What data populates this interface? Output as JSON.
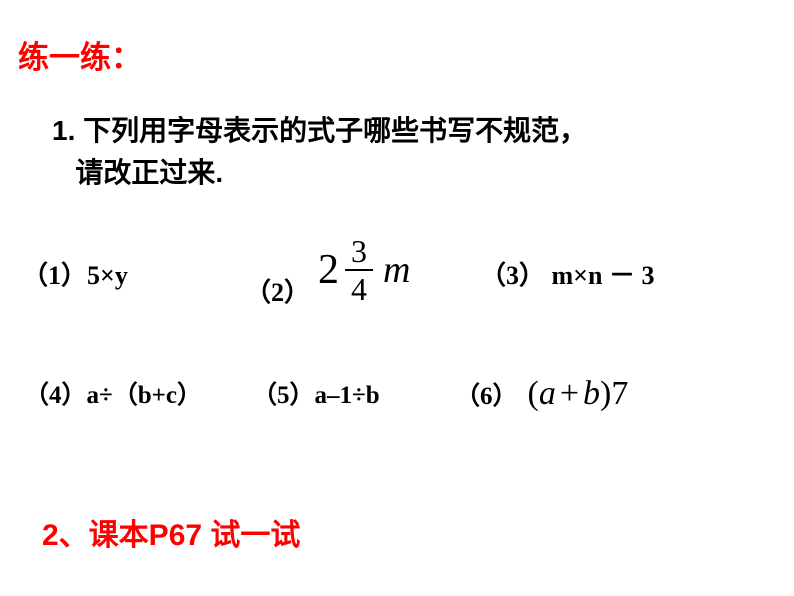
{
  "title": "练一练：",
  "question_line1": "1. 下列用字母表示的式子哪些书写不规范，",
  "question_line2": "请改正过来.",
  "expressions": {
    "e1": {
      "label": "（1）",
      "content": "5×y"
    },
    "e2": {
      "label": "（2）",
      "whole": "2",
      "numerator": "3",
      "denominator": "4",
      "variable": "m"
    },
    "e3": {
      "label": "（3）",
      "content": " m×n － 3"
    },
    "e4": {
      "label": "（4）",
      "content": "a÷（b+c）"
    },
    "e5": {
      "label": "（5）",
      "content": "a–1÷b"
    },
    "e6": {
      "label": "（6）",
      "open": "(",
      "var_a": "a",
      "plus": "+",
      "var_b": "b",
      "close": ")",
      "seven": "7"
    }
  },
  "bottom": "2、课本P67  试一试",
  "colors": {
    "red": "#ff0000",
    "black": "#000000",
    "background": "#ffffff"
  },
  "typography": {
    "title_fontsize": 31,
    "question_fontsize": 28,
    "expr_fontsize": 26,
    "formula_fontsize": 34,
    "bottom_fontsize": 30
  }
}
